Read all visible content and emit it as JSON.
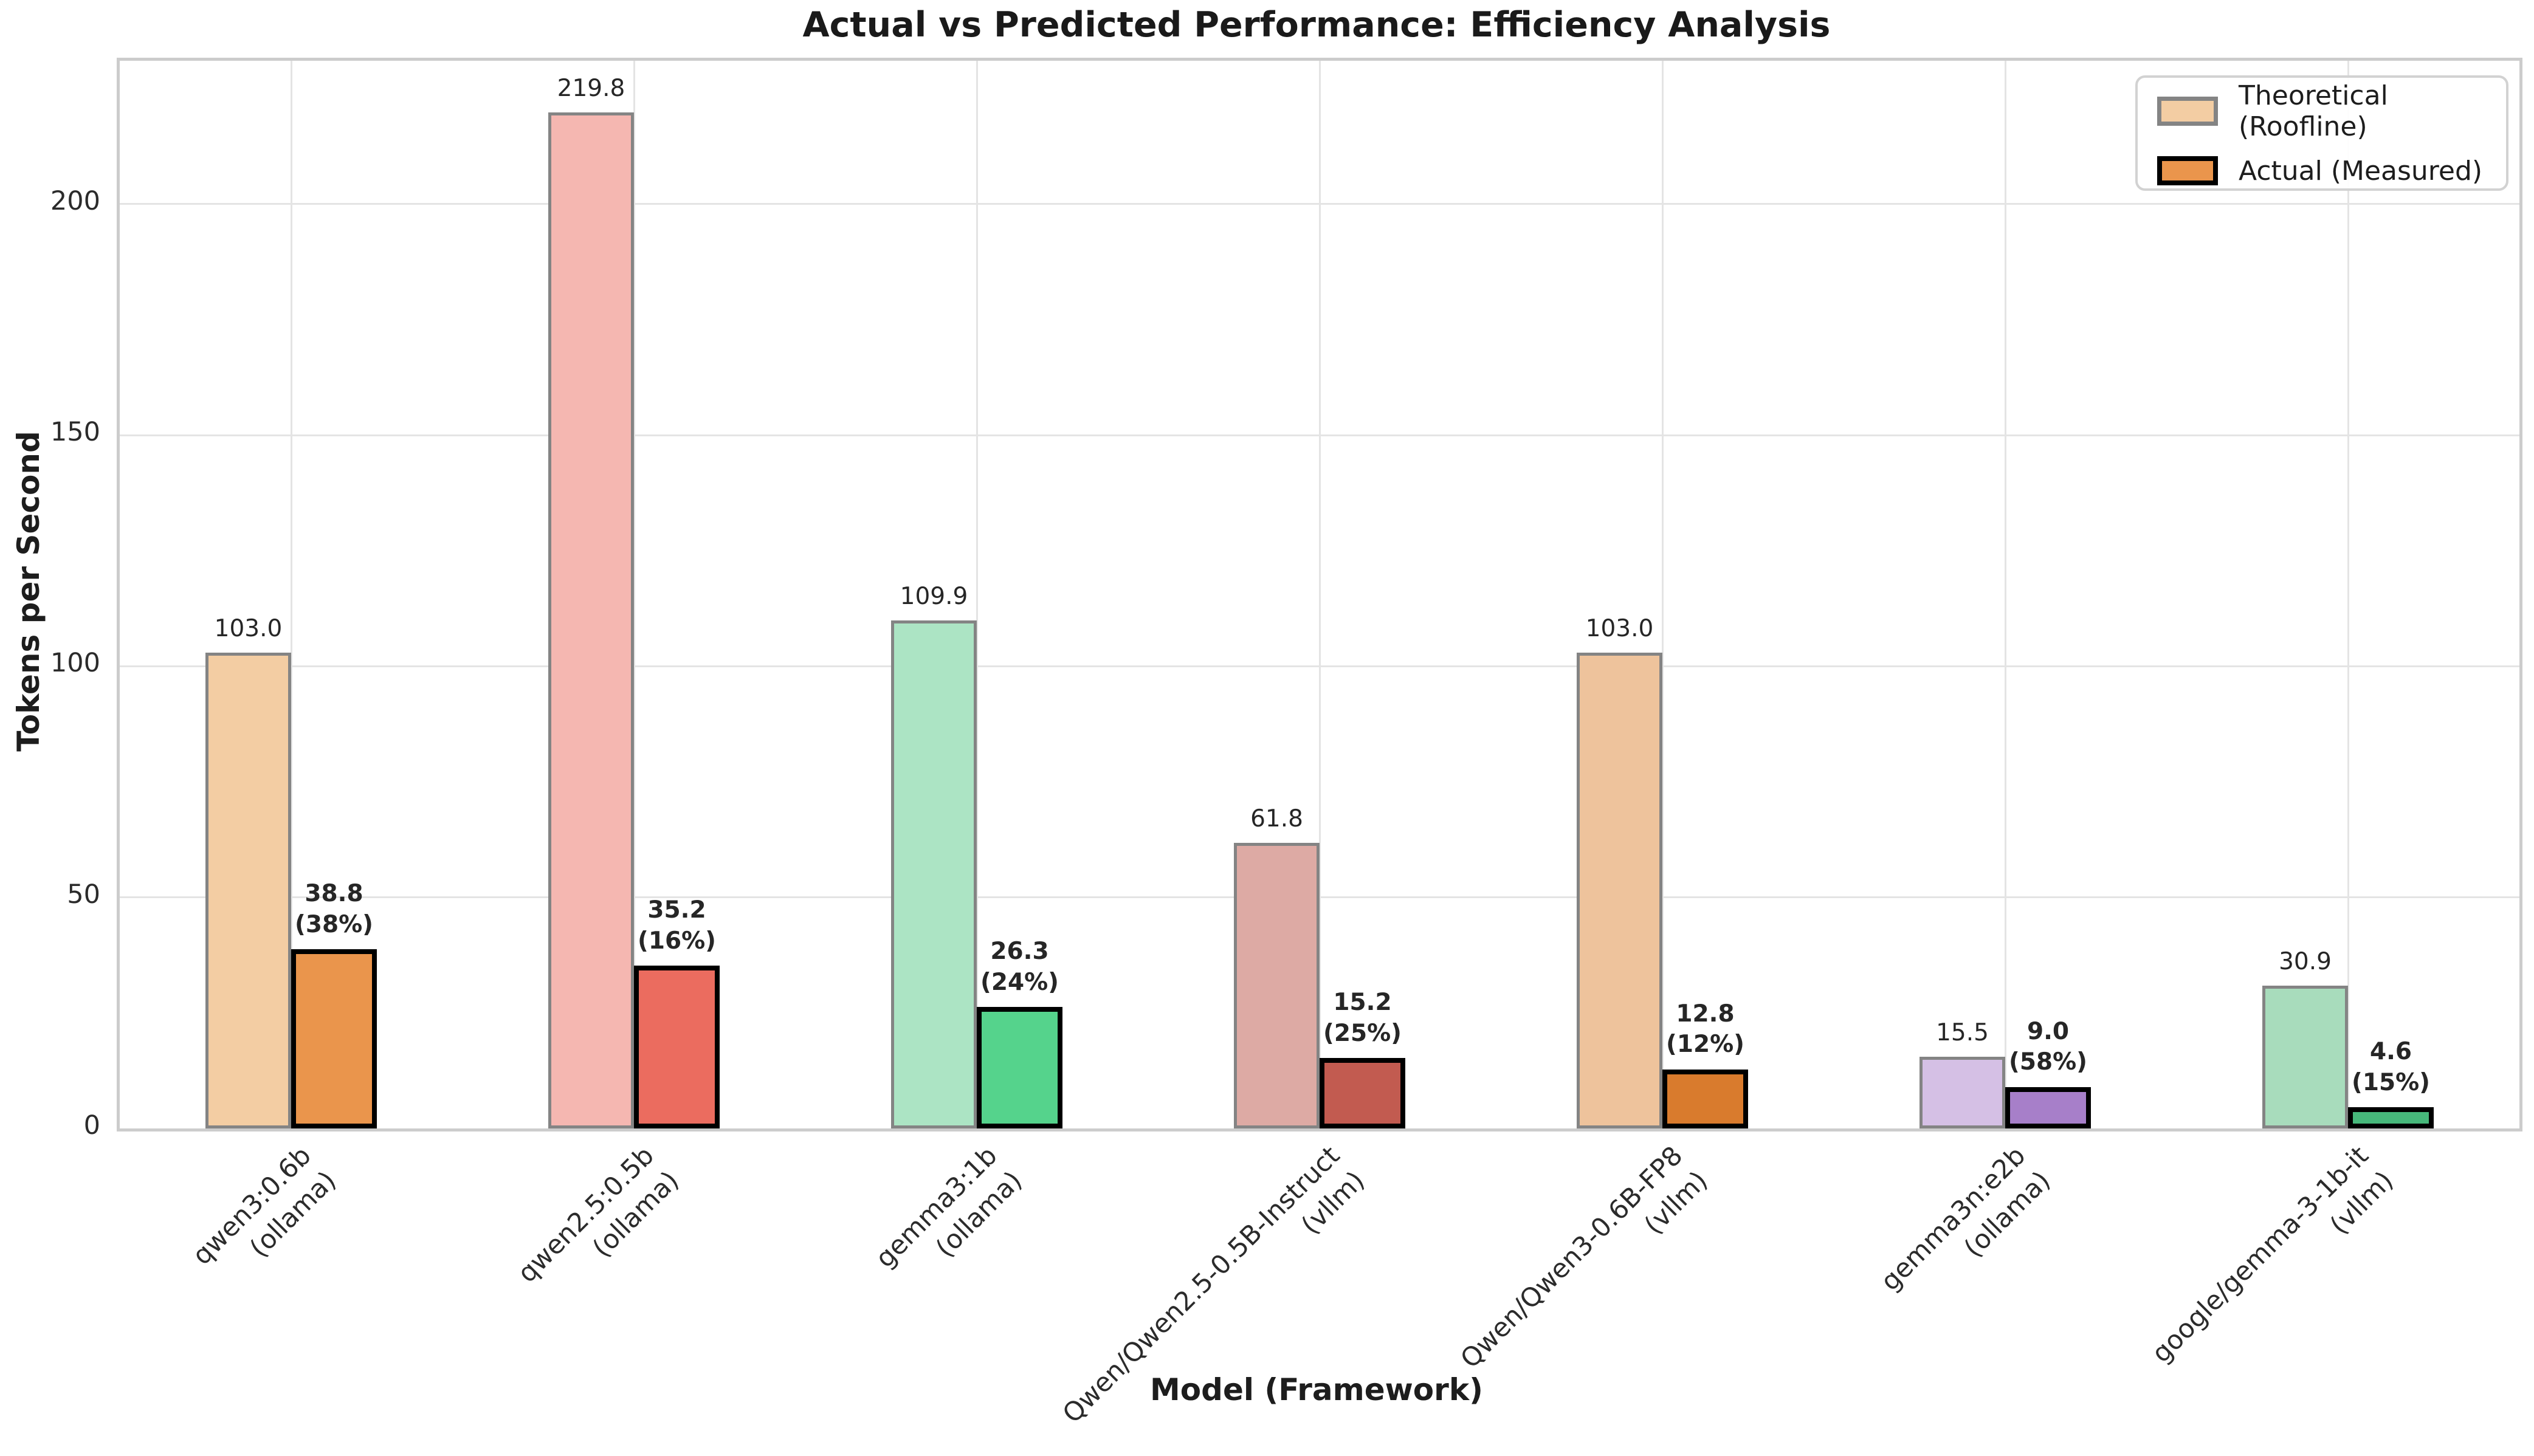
{
  "title": "Actual vs Predicted Performance: Efficiency Analysis",
  "axes": {
    "x_label": "Model (Framework)",
    "y_label": "Tokens per Second",
    "y_ticks": [
      0,
      50,
      100,
      150,
      200
    ],
    "y_max": 231
  },
  "legend": {
    "items": [
      {
        "label": "Theoretical (Roofline)",
        "fill": "#f3cda3",
        "edge": "#848484"
      },
      {
        "label": "Actual (Measured)",
        "fill": "#ea954c",
        "edge": "#000000"
      }
    ]
  },
  "chart_data": {
    "type": "bar",
    "title": "Actual vs Predicted Performance: Efficiency Analysis",
    "xlabel": "Model (Framework)",
    "ylabel": "Tokens per Second",
    "ylim": [
      0,
      231
    ],
    "grid": true,
    "legend_position": "upper right",
    "categories": [
      "qwen3:0.6b\n(ollama)",
      "qwen2.5:0.5b\n(ollama)",
      "gemma3:1b\n(ollama)",
      "Qwen/Qwen2.5-0.5B-Instruct\n(vllm)",
      "Qwen/Qwen3-0.6B-FP8\n(vllm)",
      "gemma3n:e2b\n(ollama)",
      "google/gemma-3-1b-it\n(vllm)"
    ],
    "series": [
      {
        "name": "Theoretical (Roofline)",
        "values": [
          103.0,
          219.8,
          109.9,
          61.8,
          103.0,
          15.5,
          30.9
        ]
      },
      {
        "name": "Actual (Measured)",
        "values": [
          38.8,
          35.2,
          26.3,
          15.2,
          12.8,
          9.0,
          4.6
        ]
      }
    ],
    "efficiency_percent": [
      38,
      16,
      24,
      25,
      12,
      58,
      15
    ],
    "group_colors": [
      {
        "theoretical": "#f3cda3",
        "actual": "#ea954c"
      },
      {
        "theoretical": "#f5b7b1",
        "actual": "#eb6c5f"
      },
      {
        "theoretical": "#ace4c4",
        "actual": "#55d38c"
      },
      {
        "theoretical": "#ddaaa4",
        "actual": "#c25b50"
      },
      {
        "theoretical": "#eec39c",
        "actual": "#d97b2d"
      },
      {
        "theoretical": "#d5c0e5",
        "actual": "#a77fc9"
      },
      {
        "theoretical": "#a8dcbc",
        "actual": "#47b87b"
      }
    ]
  }
}
